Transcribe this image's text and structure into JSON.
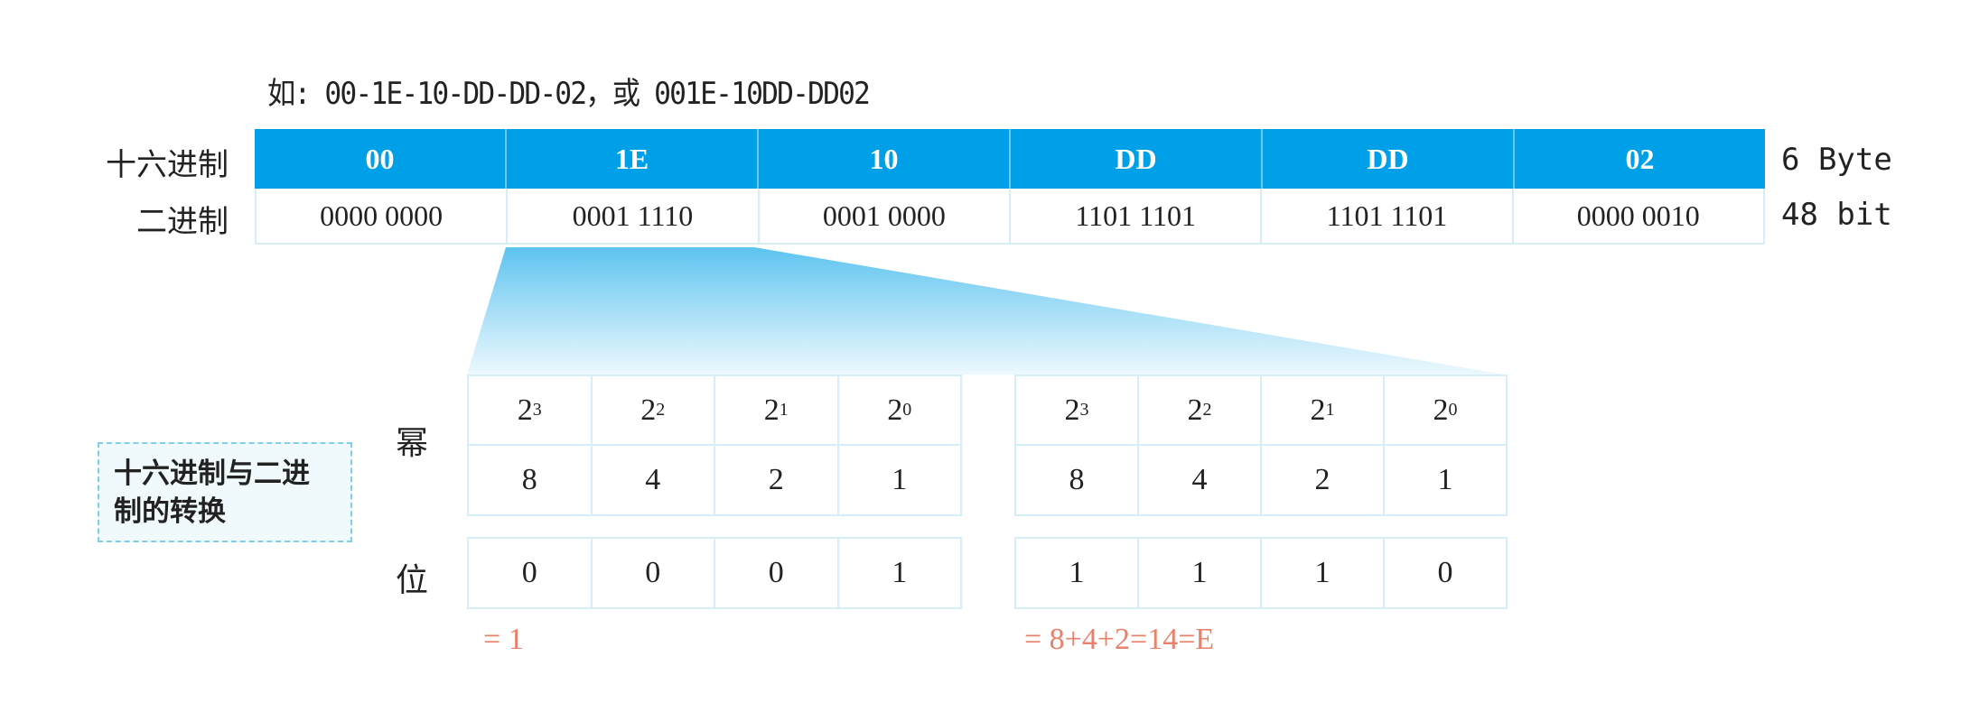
{
  "example_text": "如: 00-1E-10-DD-DD-02，或 001E-10DD-DD02",
  "row_labels": {
    "hex": "十六进制",
    "binary": "二进制"
  },
  "hex_values": [
    "00",
    "1E",
    "10",
    "DD",
    "DD",
    "02"
  ],
  "binary_values": [
    "0000 0000",
    "0001 1110",
    "0001 0000",
    "1101 1101",
    "1101 1101",
    "0000 0010"
  ],
  "units": {
    "bytes": "6 Byte",
    "bits": "48 bit"
  },
  "topic_box": "十六进制与二进制的转换",
  "side_labels": {
    "power": "幂",
    "bit": "位"
  },
  "power_base": "2",
  "exponents": [
    "3",
    "2",
    "1",
    "0"
  ],
  "weights": [
    "8",
    "4",
    "2",
    "1"
  ],
  "groups": [
    {
      "bits": [
        "0",
        "0",
        "0",
        "1"
      ],
      "result": "= 1"
    },
    {
      "bits": [
        "1",
        "1",
        "1",
        "0"
      ],
      "result": "= 8+4+2=14=E"
    }
  ],
  "colors": {
    "header_blue": "#00a0e9",
    "result_text": "#e8806a",
    "grid_line": "#d6eef8"
  }
}
